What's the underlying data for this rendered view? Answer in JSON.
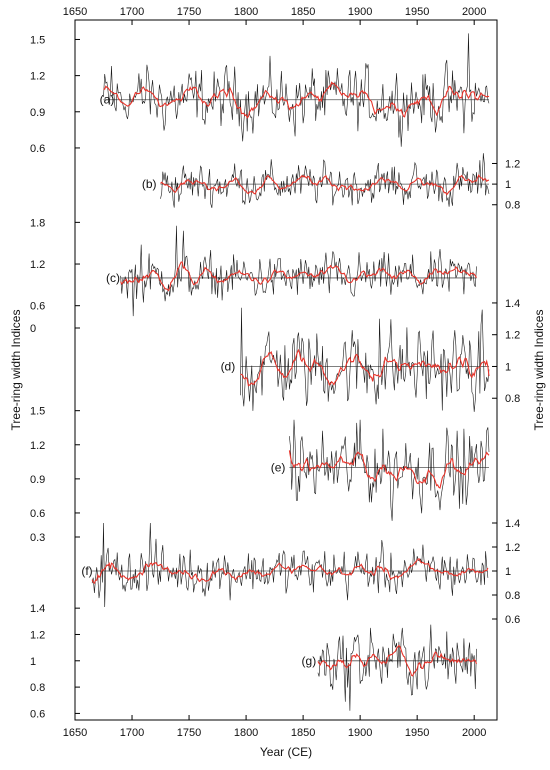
{
  "chart_data": {
    "type": "line",
    "xlabel": "Year (CE)",
    "ylabel_left": "Tree-ring width Indices",
    "ylabel_right": "Tree-ring width Indices",
    "xlim": [
      1650,
      2020
    ],
    "x_ticks": [
      1650,
      1700,
      1750,
      1800,
      1850,
      1900,
      1950,
      2000
    ],
    "x_tick_labels": [
      "1650",
      "1700",
      "1750",
      "1800",
      "1850",
      "1900",
      "1950",
      "2000"
    ],
    "colors": {
      "raw": "#1a1a1a",
      "smooth": "#e8332a",
      "reference": "#555555"
    },
    "series": [
      {
        "name": "(a)",
        "label_x": 1688,
        "side": "left",
        "start": 1675,
        "end": 2013,
        "mean": 1.0,
        "amp": 0.11,
        "ylim": [
          0.5,
          1.62
        ],
        "ticks": [
          0.6,
          0.9,
          1.2,
          1.5
        ],
        "tick_labels": [
          "0.6",
          "0.9",
          "1.2",
          "1.5"
        ],
        "peaks": [
          [
            1682,
            1.28
          ],
          [
            1696,
            0.84
          ],
          [
            1713,
            1.29
          ],
          [
            1858,
            1.26
          ],
          [
            1890,
            1.19
          ],
          [
            1995,
            1.55
          ]
        ]
      },
      {
        "name": "(b)",
        "label_x": 1725,
        "side": "right",
        "start": 1725,
        "end": 2013,
        "mean": 1.0,
        "amp": 0.085,
        "ylim": [
          0.72,
          1.35
        ],
        "ticks": [
          0.8,
          1.0,
          1.2
        ],
        "tick_labels": [
          "0.8",
          "1",
          "1.2"
        ],
        "peaks": [
          [
            1741,
            0.83
          ],
          [
            1790,
            1.2
          ],
          [
            1930,
            1.17
          ],
          [
            1981,
            0.79
          ],
          [
            2008,
            1.3
          ]
        ]
      },
      {
        "name": "(c)",
        "label_x": 1693,
        "side": "left",
        "start": 1690,
        "end": 2002,
        "mean": 1.0,
        "amp": 0.14,
        "ylim": [
          0.25,
          2.05
        ],
        "ticks": [
          0.6,
          1.2,
          1.8
        ],
        "tick_labels": [
          "0.6",
          "1.2",
          "1.8"
        ],
        "peaks": [
          [
            1701,
            0.45
          ],
          [
            1708,
            1.48
          ],
          [
            1739,
            1.75
          ],
          [
            1745,
            1.68
          ],
          [
            1812,
            1.27
          ],
          [
            1895,
            0.74
          ]
        ]
      },
      {
        "name": "(d)",
        "label_x": 1794,
        "side": "right",
        "start": 1795,
        "end": 2013,
        "mean": 1.0,
        "amp": 0.11,
        "ylim": [
          0.6,
          1.45
        ],
        "ticks": [
          0.8,
          1.0,
          1.2,
          1.4
        ],
        "tick_labels": [
          "0.8",
          "1",
          "1.2",
          "1.4"
        ],
        "peaks": [
          [
            1796,
            1.37
          ],
          [
            1806,
            0.72
          ],
          [
            1917,
            1.3
          ],
          [
            1986,
            0.85
          ],
          [
            2005,
            0.83
          ]
        ]
      },
      {
        "name": "(e)",
        "label_x": 1838,
        "side": "left",
        "start": 1838,
        "end": 2013,
        "mean": 1.0,
        "amp": 0.14,
        "ylim": [
          0.45,
          1.55
        ],
        "ticks": [
          0.6,
          0.9,
          1.2,
          1.5
        ],
        "tick_labels": [
          "0.6",
          "0.9",
          "1.2",
          "1.5"
        ],
        "peaks": [
          [
            1842,
            1.42
          ],
          [
            1900,
            1.42
          ],
          [
            1928,
            0.53
          ],
          [
            1990,
            0.68
          ]
        ]
      },
      {
        "name": "(f)",
        "label_x": 1669,
        "side": "right",
        "start": 1665,
        "end": 2012,
        "mean": 1.0,
        "amp": 0.085,
        "ylim": [
          0.55,
          1.55
        ],
        "ticks": [
          0.6,
          0.8,
          1.0,
          1.2,
          1.4
        ],
        "tick_labels": [
          "0.6",
          "0.8",
          "1",
          "1.2",
          "1.4"
        ],
        "peaks": [
          [
            1675,
            1.4
          ],
          [
            1716,
            1.4
          ],
          [
            1676,
            0.7
          ]
        ]
      },
      {
        "name": "(g)",
        "label_x": 1865,
        "side": "left",
        "start": 1863,
        "end": 2002,
        "mean": 1.0,
        "amp": 0.1,
        "ylim": [
          0.55,
          1.5
        ],
        "ticks": [
          0.6,
          0.8,
          1.0,
          1.2,
          1.4
        ],
        "tick_labels": [
          "0.6",
          "0.8",
          "1",
          "1.2",
          "1.4"
        ],
        "peaks": [
          [
            1891,
            0.62
          ],
          [
            1895,
            1.18
          ],
          [
            1909,
            1.25
          ],
          [
            1937,
            1.25
          ]
        ]
      }
    ],
    "left_extra_ticks": [
      {
        "value": 0.3,
        "label": "0.3",
        "series": 5
      },
      {
        "value": 0.0,
        "label": "0",
        "series": 3
      }
    ]
  }
}
